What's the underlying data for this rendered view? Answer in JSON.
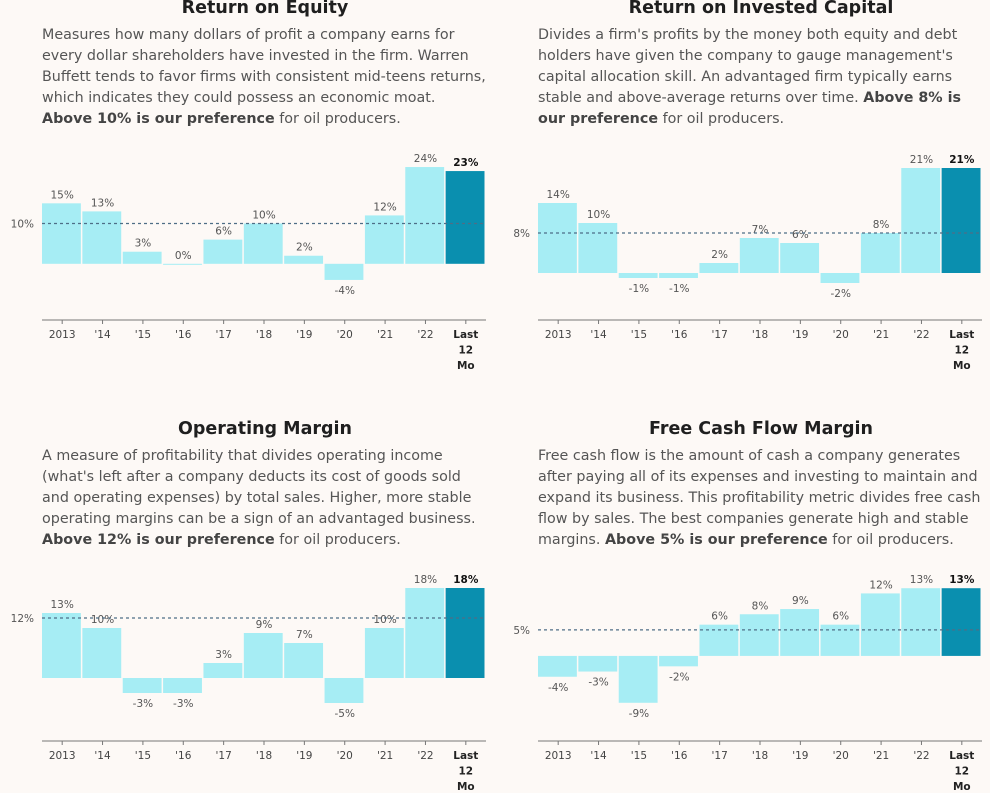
{
  "chart_data": [
    {
      "type": "bar",
      "title": "Return on Equity",
      "description": {
        "text": "Measures how many dollars of profit a company earns for every dollar shareholders have invested in the firm. Warren Buffett tends to favor firms with consistent mid-teens returns, which indicates they could possess an economic moat. ",
        "bold": "Above 10% is our preference",
        "tail": " for oil producers."
      },
      "categories": [
        "2013",
        "'14",
        "'15",
        "'16",
        "'17",
        "'18",
        "'19",
        "'20",
        "'21",
        "'22",
        "Last 12 Mo"
      ],
      "values": [
        15,
        13,
        3,
        0,
        6,
        10,
        2,
        -4,
        12,
        24,
        23
      ],
      "value_labels": [
        "15%",
        "13%",
        "3%",
        "0%",
        "6%",
        "10%",
        "2%",
        "-4%",
        "12%",
        "24%",
        "23%"
      ],
      "threshold": 10,
      "threshold_label": "10%",
      "ylim": [
        -6,
        25
      ],
      "colors": {
        "bar": "#a6edf4",
        "highlight": "#0a8faf",
        "threshold": "#4e6e86"
      }
    },
    {
      "type": "bar",
      "title": "Return on Invested Capital",
      "description": {
        "text": "Divides a firm's profits by the money both equity and debt holders have given the company to gauge management's capital allocation skill. An advantaged firm typically earns stable and above-average returns over time. ",
        "bold": "Above 8% is our preference",
        "tail": " for oil producers."
      },
      "categories": [
        "2013",
        "'14",
        "'15",
        "'16",
        "'17",
        "'18",
        "'19",
        "'20",
        "'21",
        "'22",
        "Last 12 Mo"
      ],
      "values": [
        14,
        10,
        -1,
        -1,
        2,
        7,
        6,
        -2,
        8,
        21,
        21
      ],
      "value_labels": [
        "14%",
        "10%",
        "-1%",
        "-1%",
        "2%",
        "7%",
        "6%",
        "-2%",
        "8%",
        "21%",
        "21%"
      ],
      "threshold": 8,
      "threshold_label": "8%",
      "ylim": [
        -3,
        22
      ],
      "colors": {
        "bar": "#a6edf4",
        "highlight": "#0a8faf",
        "threshold": "#4e6e86"
      }
    },
    {
      "type": "bar",
      "title": "Operating Margin",
      "description": {
        "text": "A measure of profitability that divides operating income (what's left after a company deducts its cost of goods sold and operating expenses) by total sales. Higher, more stable operating margins can be a sign of an advantaged business. ",
        "bold": "Above 12% is our preference",
        "tail": " for oil producers."
      },
      "categories": [
        "2013",
        "'14",
        "'15",
        "'16",
        "'17",
        "'18",
        "'19",
        "'20",
        "'21",
        "'22",
        "Last 12 Mo"
      ],
      "values": [
        13,
        10,
        -3,
        -3,
        3,
        9,
        7,
        -5,
        10,
        18,
        18
      ],
      "value_labels": [
        "13%",
        "10%",
        "-3%",
        "-3%",
        "3%",
        "9%",
        "7%",
        "-5%",
        "10%",
        "18%",
        "18%"
      ],
      "threshold": 12,
      "threshold_label": "12%",
      "ylim": [
        -6,
        19
      ],
      "colors": {
        "bar": "#a6edf4",
        "highlight": "#0a8faf",
        "threshold": "#4e6e86"
      }
    },
    {
      "type": "bar",
      "title": "Free Cash Flow Margin",
      "description": {
        "text": "Free cash flow is the amount of cash a company generates after paying all of its expenses and investing to maintain and expand its business. This profitability metric divides free cash flow by sales. The best companies generate high and stable margins. ",
        "bold": "Above 5% is our preference",
        "tail": " for oil producers."
      },
      "categories": [
        "2013",
        "'14",
        "'15",
        "'16",
        "'17",
        "'18",
        "'19",
        "'20",
        "'21",
        "'22",
        "Last 12 Mo"
      ],
      "values": [
        -4,
        -3,
        -9,
        -2,
        6,
        8,
        9,
        6,
        12,
        13,
        13
      ],
      "value_labels": [
        "-4%",
        "-3%",
        "-9%",
        "-2%",
        "6%",
        "8%",
        "9%",
        "6%",
        "12%",
        "13%",
        "13%"
      ],
      "threshold": 5,
      "threshold_label": "5%",
      "ylim": [
        -10,
        14
      ],
      "colors": {
        "bar": "#a6edf4",
        "highlight": "#0a8faf",
        "threshold": "#4e6e86"
      }
    }
  ]
}
